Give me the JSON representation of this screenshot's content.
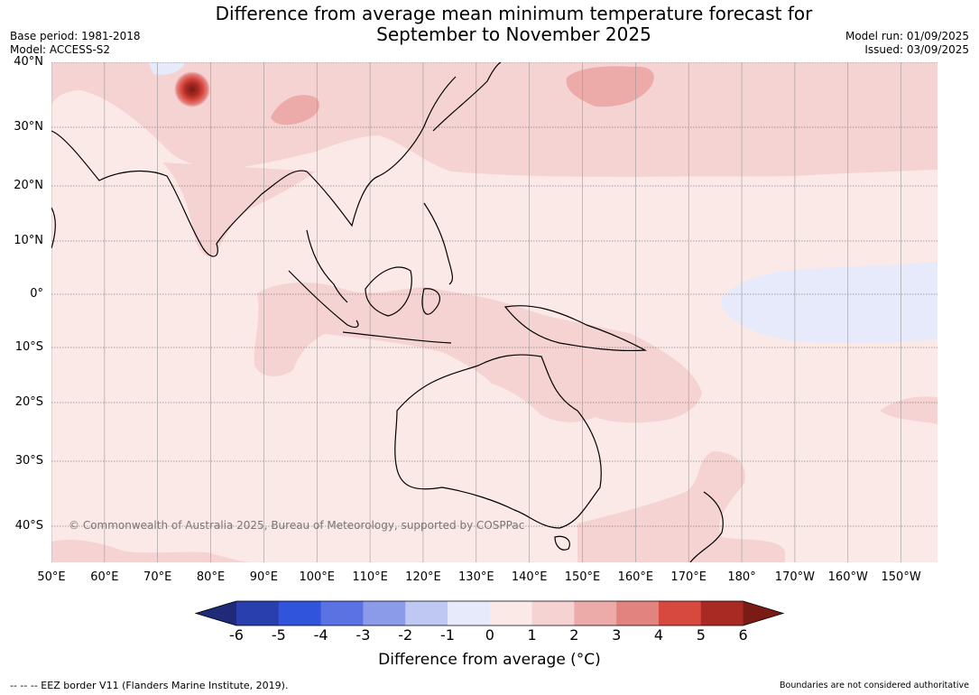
{
  "title_line1": "Difference from average mean minimum temperature forecast for",
  "title_line2": "September to November 2025",
  "base_period": "Base period: 1981-2018",
  "model": "Model: ACCESS-S2",
  "model_run": "Model run: 01/09/2025",
  "issued": "Issued: 03/09/2025",
  "lat_labels": [
    "40°N",
    "30°N",
    "20°N",
    "10°N",
    "0°",
    "10°S",
    "20°S",
    "30°S",
    "40°S"
  ],
  "lon_labels": [
    "50°E",
    "60°E",
    "70°E",
    "80°E",
    "90°E",
    "100°E",
    "110°E",
    "120°E",
    "130°E",
    "140°E",
    "150°E",
    "160°E",
    "170°E",
    "180°",
    "170°W",
    "160°W",
    "150°W"
  ],
  "copyright": "© Commonwealth of Australia 2025, Bureau of Meteorology, supported by COSPPac",
  "colorbar": {
    "ticks": [
      "-6",
      "-5",
      "-4",
      "-3",
      "-2",
      "-1",
      "0",
      "1",
      "2",
      "3",
      "4",
      "5",
      "6"
    ],
    "colors": [
      "#1f2a78",
      "#2a3fae",
      "#3154dd",
      "#5a72e3",
      "#8b9bea",
      "#bfc7f3",
      "#e6eafb",
      "#fbe9e8",
      "#f5d3d2",
      "#ecaaa8",
      "#e2837f",
      "#d7483e",
      "#a82a22",
      "#7a1b16"
    ],
    "label": "Difference from average (°C)"
  },
  "footer_left": "-- -- -- EEZ border V11 (Flanders Marine Institute, 2019).",
  "footer_right": "Boundaries are not considered authoritative"
}
